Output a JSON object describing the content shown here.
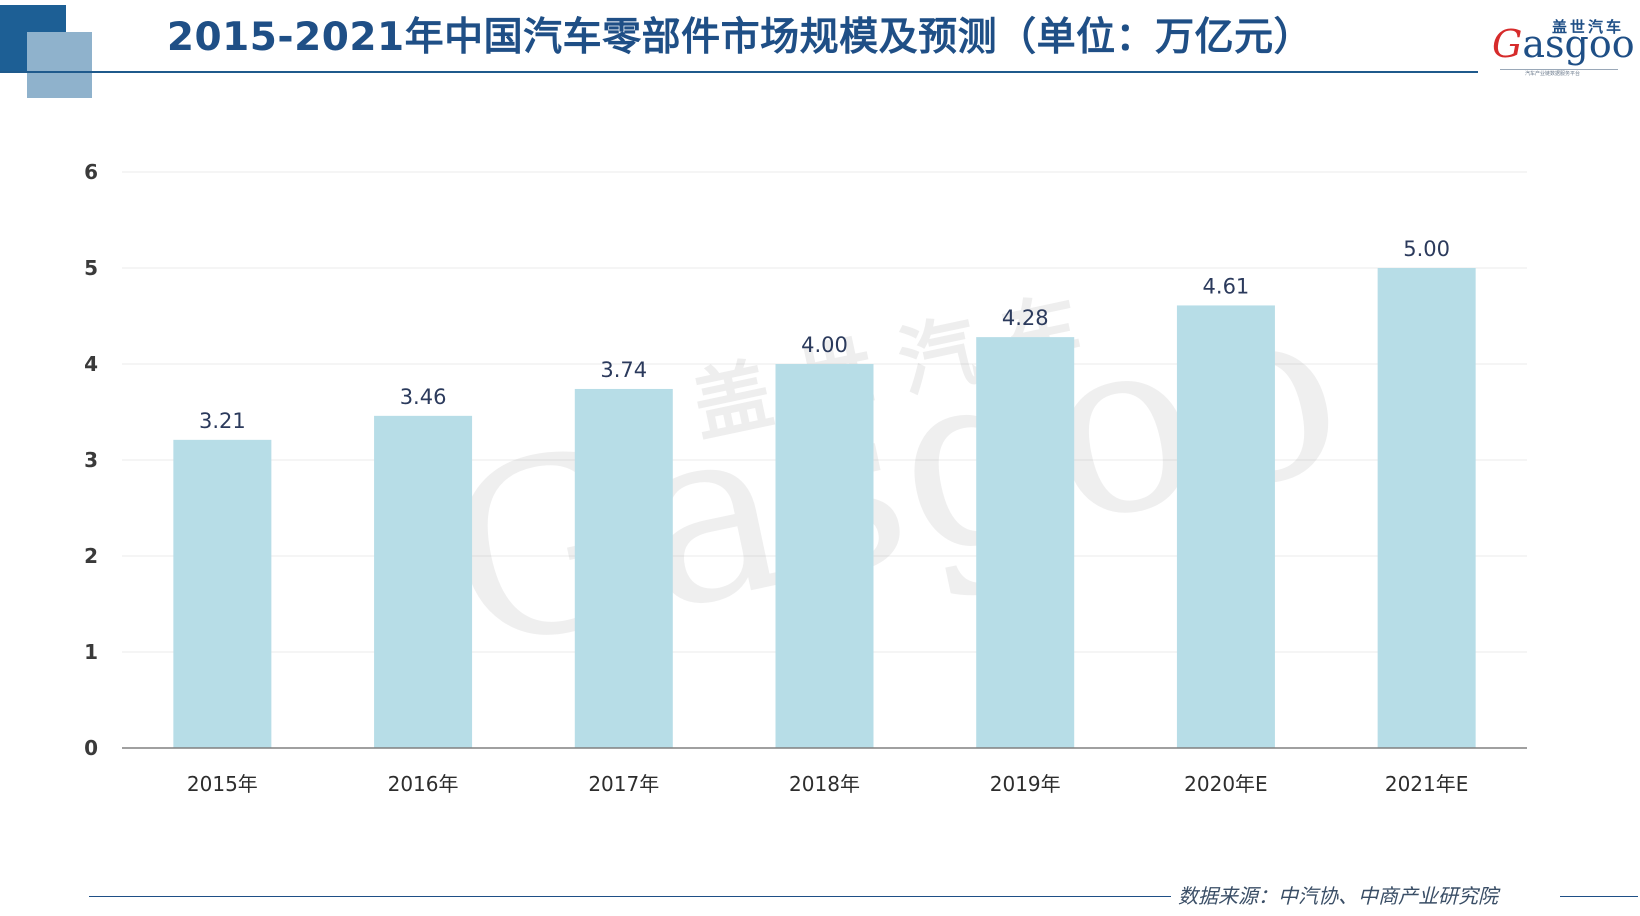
{
  "page": {
    "title": "2015-2021年中国汽车零部件市场规模及预测（单位：万亿元）",
    "source": "数据来源：中汽协、中商产业研究院"
  },
  "logo": {
    "name_cn": "盖世汽车",
    "name_en_first": "G",
    "name_en_rest": "asgoo",
    "tagline": "汽车产业链数据服务平台"
  },
  "watermark": {
    "name_cn": "盖世汽车",
    "name_en": "Gasgoo"
  },
  "colors": {
    "bar": "#b7dde7",
    "title": "#1f4f86",
    "axis": "#808080",
    "grid": "#ebebeb",
    "value_label": "#2b3a5c"
  },
  "chart_data": {
    "type": "bar",
    "title": "2015-2021年中国汽车零部件市场规模及预测（单位：万亿元）",
    "categories": [
      "2015年",
      "2016年",
      "2017年",
      "2018年",
      "2019年",
      "2020年E",
      "2021年E"
    ],
    "values": [
      3.21,
      3.46,
      3.74,
      4.0,
      4.28,
      4.61,
      5.0
    ],
    "value_labels": [
      "3.21",
      "3.46",
      "3.74",
      "4.00",
      "4.28",
      "4.61",
      "5.00"
    ],
    "yticks": [
      "0",
      "1",
      "2",
      "3",
      "4",
      "5",
      "6"
    ],
    "ylim": [
      0,
      6
    ],
    "xlabel": "",
    "ylabel": "",
    "grid": true,
    "legend": "none"
  }
}
